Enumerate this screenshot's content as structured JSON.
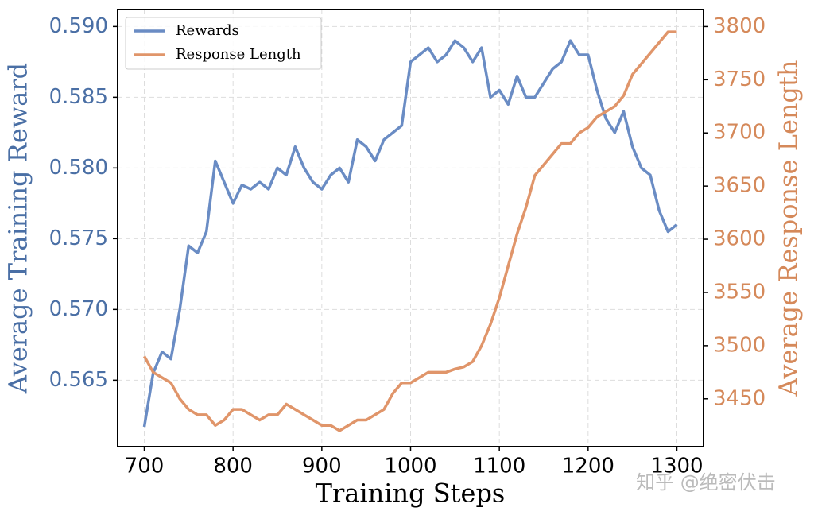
{
  "chart_data": {
    "type": "line",
    "xlabel": "Training Steps",
    "ylabel": "Average Training Reward",
    "y2label": "Average Response Length",
    "y_color": "#4a6fa5",
    "y2_color": "#d5895a",
    "x": [
      700,
      710,
      720,
      730,
      740,
      750,
      760,
      770,
      780,
      790,
      800,
      810,
      820,
      830,
      840,
      850,
      860,
      870,
      880,
      890,
      900,
      910,
      920,
      930,
      940,
      950,
      960,
      970,
      980,
      990,
      1000,
      1010,
      1020,
      1030,
      1040,
      1050,
      1060,
      1070,
      1080,
      1090,
      1100,
      1110,
      1120,
      1130,
      1140,
      1150,
      1160,
      1170,
      1180,
      1190,
      1200,
      1210,
      1220,
      1230,
      1240,
      1250,
      1260,
      1270,
      1280,
      1290,
      1300
    ],
    "series": [
      {
        "name": "Rewards",
        "color": "#6a8cc4",
        "axis": "y",
        "values": [
          0.5617,
          0.5655,
          0.567,
          0.5665,
          0.57,
          0.5745,
          0.574,
          0.5755,
          0.5805,
          0.579,
          0.5775,
          0.5788,
          0.5785,
          0.579,
          0.5785,
          0.58,
          0.5795,
          0.5815,
          0.58,
          0.579,
          0.5785,
          0.5795,
          0.58,
          0.579,
          0.582,
          0.5815,
          0.5805,
          0.582,
          0.5825,
          0.583,
          0.5875,
          0.588,
          0.5885,
          0.5875,
          0.588,
          0.589,
          0.5885,
          0.5875,
          0.5885,
          0.585,
          0.5855,
          0.5845,
          0.5865,
          0.585,
          0.585,
          0.586,
          0.587,
          0.5875,
          0.589,
          0.588,
          0.588,
          0.5855,
          0.5835,
          0.5825,
          0.584,
          0.5815,
          0.58,
          0.5795,
          0.577,
          0.5755,
          0.576
        ]
      },
      {
        "name": "Response Length",
        "color": "#e0956a",
        "axis": "y2",
        "values": [
          3490,
          3475,
          3470,
          3465,
          3450,
          3440,
          3435,
          3435,
          3425,
          3430,
          3440,
          3440,
          3435,
          3430,
          3435,
          3435,
          3445,
          3440,
          3435,
          3430,
          3425,
          3425,
          3420,
          3425,
          3430,
          3430,
          3435,
          3440,
          3455,
          3465,
          3465,
          3470,
          3475,
          3475,
          3475,
          3478,
          3480,
          3485,
          3500,
          3520,
          3545,
          3575,
          3605,
          3630,
          3660,
          3670,
          3680,
          3690,
          3690,
          3700,
          3705,
          3715,
          3720,
          3725,
          3735,
          3755,
          3765,
          3775,
          3785,
          3795,
          3795
        ]
      }
    ],
    "xlim": [
      670,
      1330
    ],
    "xticks": [
      700,
      800,
      900,
      1000,
      1100,
      1200,
      1300
    ],
    "ylim": [
      0.5603,
      0.5912
    ],
    "yticks": [
      0.565,
      {
        "value": 0.57,
        "label": "0.570"
      },
      0.575,
      {
        "value": 0.58,
        "label": "0.580"
      },
      0.585,
      {
        "value": 0.59,
        "label": "0.590"
      }
    ],
    "y2lim": [
      3405,
      3816
    ],
    "y2ticks": [
      3450,
      3500,
      3550,
      3600,
      3650,
      3700,
      3750,
      3800
    ],
    "grid": true,
    "legend": "upper left",
    "watermark": "知乎 @绝密伏击"
  }
}
